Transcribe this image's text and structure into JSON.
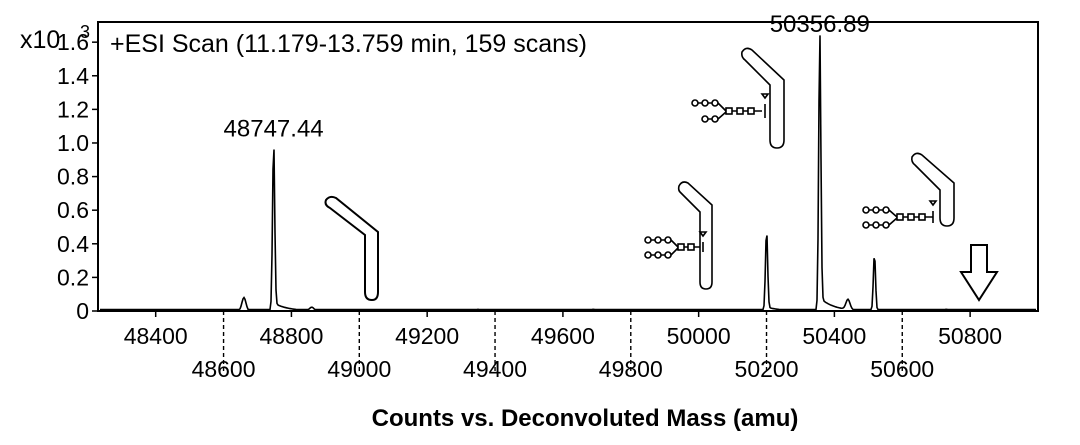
{
  "chart_data": {
    "type": "line",
    "title": "+ESI Scan (11.179-13.759 min, 159 scans)",
    "y_multiplier_label": "x10",
    "y_multiplier_exp": "3",
    "xlabel": "Counts vs. Deconvoluted Mass (amu)",
    "ylabel": "",
    "xlim": [
      48230,
      51000
    ],
    "ylim": [
      0,
      1.72
    ],
    "y_ticks": [
      "0",
      "0.2",
      "0.4",
      "0.6",
      "0.8",
      "1.0",
      "1.2",
      "1.4",
      "1.6"
    ],
    "x_ticks_upper": [
      "48400",
      "48800",
      "49200",
      "49600",
      "50000",
      "50400",
      "50800"
    ],
    "x_ticks_lower": [
      "48600",
      "49000",
      "49400",
      "49800",
      "50200",
      "50600"
    ],
    "grid": false,
    "peaks": [
      {
        "mass": 48660,
        "intensity": 0.08
      },
      {
        "mass": 48747.44,
        "intensity": 0.98,
        "label": "48747.44"
      },
      {
        "mass": 48860,
        "intensity": 0.02
      },
      {
        "mass": 49350,
        "intensity": 0.01
      },
      {
        "mass": 49690,
        "intensity": 0.01
      },
      {
        "mass": 50200,
        "intensity": 0.47
      },
      {
        "mass": 50356.89,
        "intensity": 1.6,
        "label": "50356.89"
      },
      {
        "mass": 50440,
        "intensity": 0.06
      },
      {
        "mass": 50518,
        "intensity": 0.34
      },
      {
        "mass": 50730,
        "intensity": 0.01
      }
    ],
    "annotations": {
      "arrow_mass": 50800
    }
  }
}
